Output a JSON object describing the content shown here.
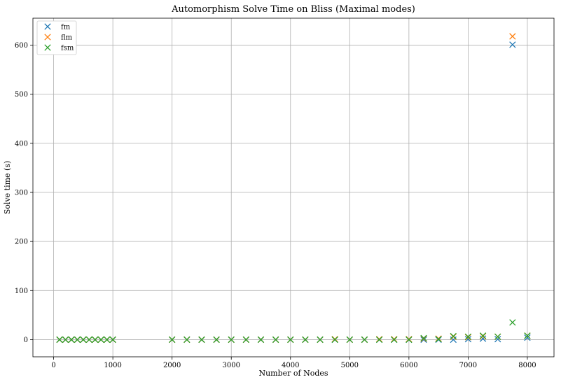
{
  "chart_data": {
    "type": "scatter",
    "title": "Automorphism Solve Time on Bliss (Maximal modes)",
    "xlabel": "Number of Nodes",
    "ylabel": "Solve time (s)",
    "xlim": [
      -350,
      8450
    ],
    "ylim": [
      -35,
      655
    ],
    "xticks": [
      0,
      1000,
      2000,
      3000,
      4000,
      5000,
      6000,
      7000,
      8000
    ],
    "yticks": [
      0,
      100,
      200,
      300,
      400,
      500,
      600
    ],
    "grid": true,
    "legend_position": "top-left",
    "marker": "x",
    "series": [
      {
        "name": "fm",
        "color": "#1f77b4",
        "points": [
          [
            100,
            0
          ],
          [
            200,
            0
          ],
          [
            300,
            0
          ],
          [
            400,
            0
          ],
          [
            500,
            0
          ],
          [
            600,
            0
          ],
          [
            700,
            0
          ],
          [
            800,
            0
          ],
          [
            900,
            0
          ],
          [
            1000,
            0
          ],
          [
            2000,
            0
          ],
          [
            2250,
            0
          ],
          [
            2500,
            0
          ],
          [
            2750,
            0
          ],
          [
            3000,
            0
          ],
          [
            3250,
            0
          ],
          [
            3500,
            0
          ],
          [
            3750,
            0
          ],
          [
            4000,
            0
          ],
          [
            4250,
            0
          ],
          [
            4500,
            0
          ],
          [
            4750,
            0
          ],
          [
            5000,
            0
          ],
          [
            5250,
            0
          ],
          [
            5500,
            0
          ],
          [
            5750,
            0
          ],
          [
            6000,
            0
          ],
          [
            6250,
            0
          ],
          [
            6500,
            0
          ],
          [
            6750,
            0
          ],
          [
            7000,
            1
          ],
          [
            7250,
            2
          ],
          [
            7500,
            1
          ],
          [
            7750,
            601
          ],
          [
            8000,
            4
          ]
        ]
      },
      {
        "name": "flm",
        "color": "#ff7f0e",
        "points": [
          [
            100,
            0
          ],
          [
            200,
            0
          ],
          [
            300,
            0
          ],
          [
            400,
            0
          ],
          [
            500,
            0
          ],
          [
            600,
            0
          ],
          [
            700,
            0
          ],
          [
            800,
            0
          ],
          [
            900,
            0
          ],
          [
            1000,
            0
          ],
          [
            2000,
            0
          ],
          [
            2250,
            0
          ],
          [
            2500,
            0
          ],
          [
            2750,
            0
          ],
          [
            3000,
            0
          ],
          [
            3250,
            0
          ],
          [
            3500,
            0
          ],
          [
            3750,
            0
          ],
          [
            4000,
            0
          ],
          [
            4250,
            0
          ],
          [
            4500,
            0
          ],
          [
            4750,
            1
          ],
          [
            5000,
            0
          ],
          [
            5250,
            0
          ],
          [
            5500,
            1
          ],
          [
            5750,
            1
          ],
          [
            6000,
            1
          ],
          [
            6250,
            2
          ],
          [
            6500,
            2
          ],
          [
            6750,
            6
          ],
          [
            7000,
            5
          ],
          [
            7250,
            7
          ],
          [
            7500,
            6
          ],
          [
            7750,
            618
          ],
          [
            8000,
            8
          ]
        ]
      },
      {
        "name": "fsm",
        "color": "#2ca02c",
        "points": [
          [
            100,
            0
          ],
          [
            200,
            0
          ],
          [
            300,
            0
          ],
          [
            400,
            0
          ],
          [
            500,
            0
          ],
          [
            600,
            0
          ],
          [
            700,
            0
          ],
          [
            800,
            0
          ],
          [
            900,
            0
          ],
          [
            1000,
            0
          ],
          [
            2000,
            0
          ],
          [
            2250,
            0
          ],
          [
            2500,
            0
          ],
          [
            2750,
            0
          ],
          [
            3000,
            0
          ],
          [
            3250,
            0
          ],
          [
            3500,
            0
          ],
          [
            3750,
            0
          ],
          [
            4000,
            0
          ],
          [
            4250,
            0
          ],
          [
            4500,
            0
          ],
          [
            4750,
            0
          ],
          [
            5000,
            0
          ],
          [
            5250,
            0
          ],
          [
            5500,
            0
          ],
          [
            5750,
            0
          ],
          [
            6000,
            0
          ],
          [
            6250,
            3
          ],
          [
            6500,
            1
          ],
          [
            6750,
            7
          ],
          [
            7000,
            6
          ],
          [
            7250,
            8
          ],
          [
            7500,
            6
          ],
          [
            7750,
            35
          ],
          [
            8000,
            8
          ]
        ]
      }
    ]
  }
}
